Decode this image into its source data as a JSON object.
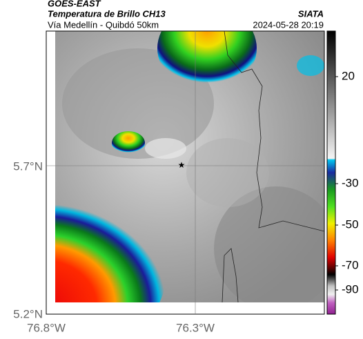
{
  "header": {
    "satellite": "GOES-EAST",
    "product": "Temperatura de Brillo CH13",
    "location": "Vía Medellín - Quibdó 50km",
    "source": "SIATA",
    "datetime": "2024-05-28 20:19"
  },
  "map": {
    "lat_labels": [
      "5.7°N",
      "5.2°N"
    ],
    "lon_labels": [
      "76.8°W",
      "76.3°W"
    ]
  },
  "colorbar": {
    "ticks": [
      "20",
      "-30",
      "-50",
      "-70",
      "-90"
    ]
  }
}
